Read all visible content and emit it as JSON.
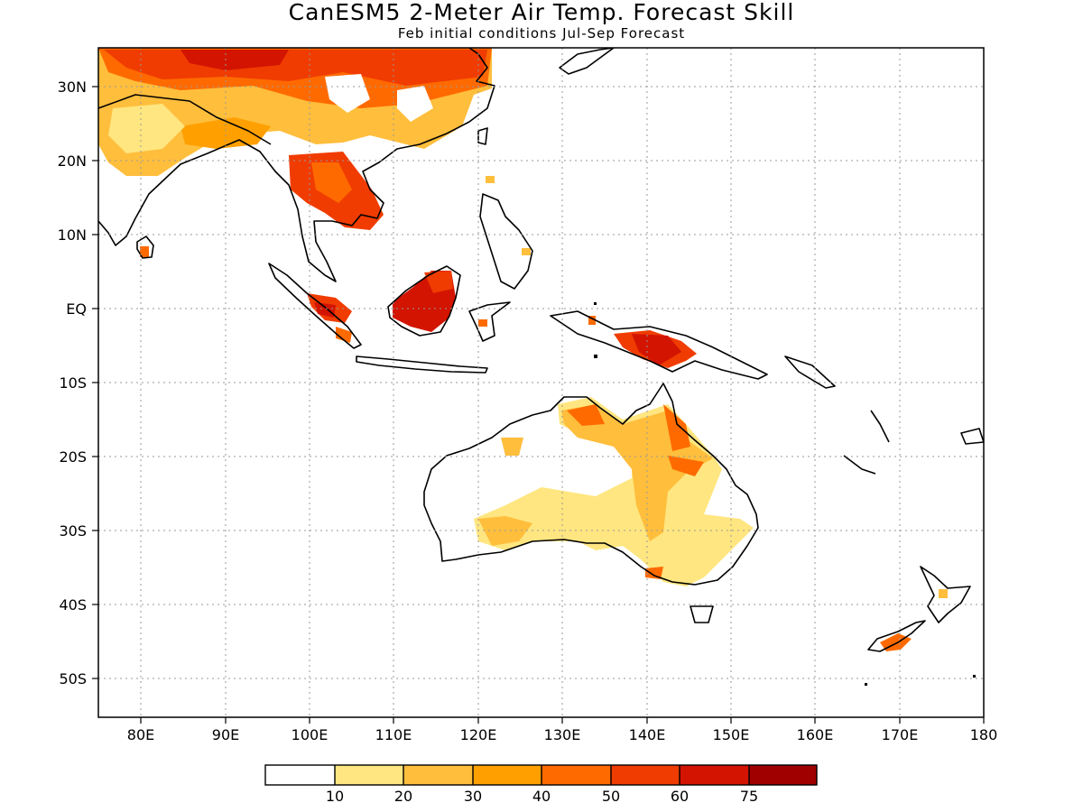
{
  "title": "CanESM5 2-Meter Air Temp. Forecast Skill",
  "subtitle": "Feb initial conditions  Jul-Sep Forecast",
  "map": {
    "lon_range": [
      75,
      180
    ],
    "lat_range": [
      -55,
      35
    ],
    "gridlines": "dotted",
    "y_ticks": [
      "30N",
      "20N",
      "10N",
      "EQ",
      "10S",
      "20S",
      "30S",
      "40S",
      "50S"
    ],
    "x_ticks": [
      "80E",
      "90E",
      "100E",
      "110E",
      "120E",
      "130E",
      "140E",
      "150E",
      "160E",
      "170E",
      "180"
    ]
  },
  "colorbar": {
    "labels": [
      "10",
      "20",
      "30",
      "40",
      "50",
      "60",
      "75"
    ],
    "colors": [
      "#ffffff",
      "#ffe680",
      "#ffbe3c",
      "#ffa000",
      "#ff6a00",
      "#f03c00",
      "#d21400",
      "#a00000"
    ]
  }
}
